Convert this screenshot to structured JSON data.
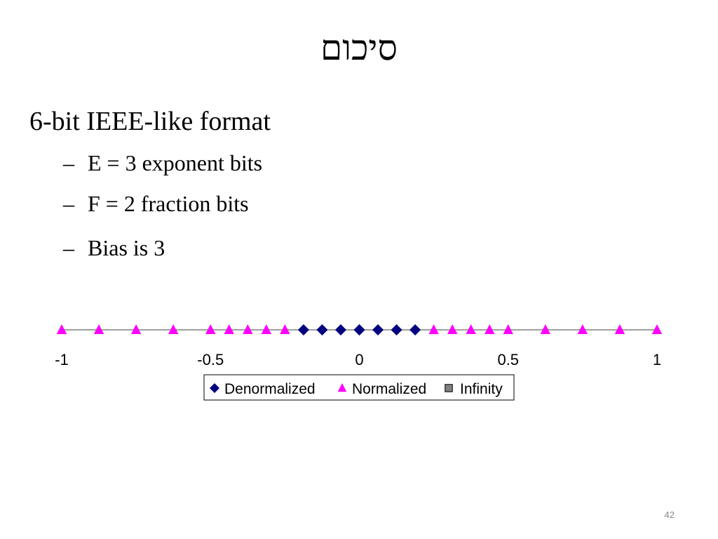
{
  "title": "סיכום",
  "bullets": [
    "6-bit IEEE-like format"
  ],
  "sub_bullets": [
    "E = 3 exponent bits",
    "F = 2 fraction bits",
    "Bias is 3"
  ],
  "page_number": "42",
  "chart_data": {
    "type": "scatter",
    "xlim": [
      -1,
      1
    ],
    "xticks": [
      -1,
      -0.5,
      0,
      0.5,
      1
    ],
    "legend": "bottom",
    "series": [
      {
        "name": "Denormalized",
        "color": "#000080",
        "marker": "diamond",
        "x": [
          -0.1875,
          -0.125,
          -0.0625,
          0,
          0,
          0.0625,
          0.125,
          0.1875
        ],
        "values": [
          0,
          0,
          0,
          0,
          0,
          0,
          0,
          0
        ]
      },
      {
        "name": "Normalized",
        "color": "#ff00ff",
        "marker": "triangle",
        "x": [
          -1,
          -0.875,
          -0.75,
          -0.625,
          -0.5,
          -0.4375,
          -0.375,
          -0.3125,
          -0.25,
          0.25,
          0.3125,
          0.375,
          0.4375,
          0.5,
          0.625,
          0.75,
          0.875,
          1
        ],
        "values": [
          0,
          0,
          0,
          0,
          0,
          0,
          0,
          0,
          0,
          0,
          0,
          0,
          0,
          0,
          0,
          0,
          0,
          0
        ]
      },
      {
        "name": "Infinity",
        "color": "#808080",
        "marker": "square",
        "x": [],
        "values": []
      }
    ]
  }
}
